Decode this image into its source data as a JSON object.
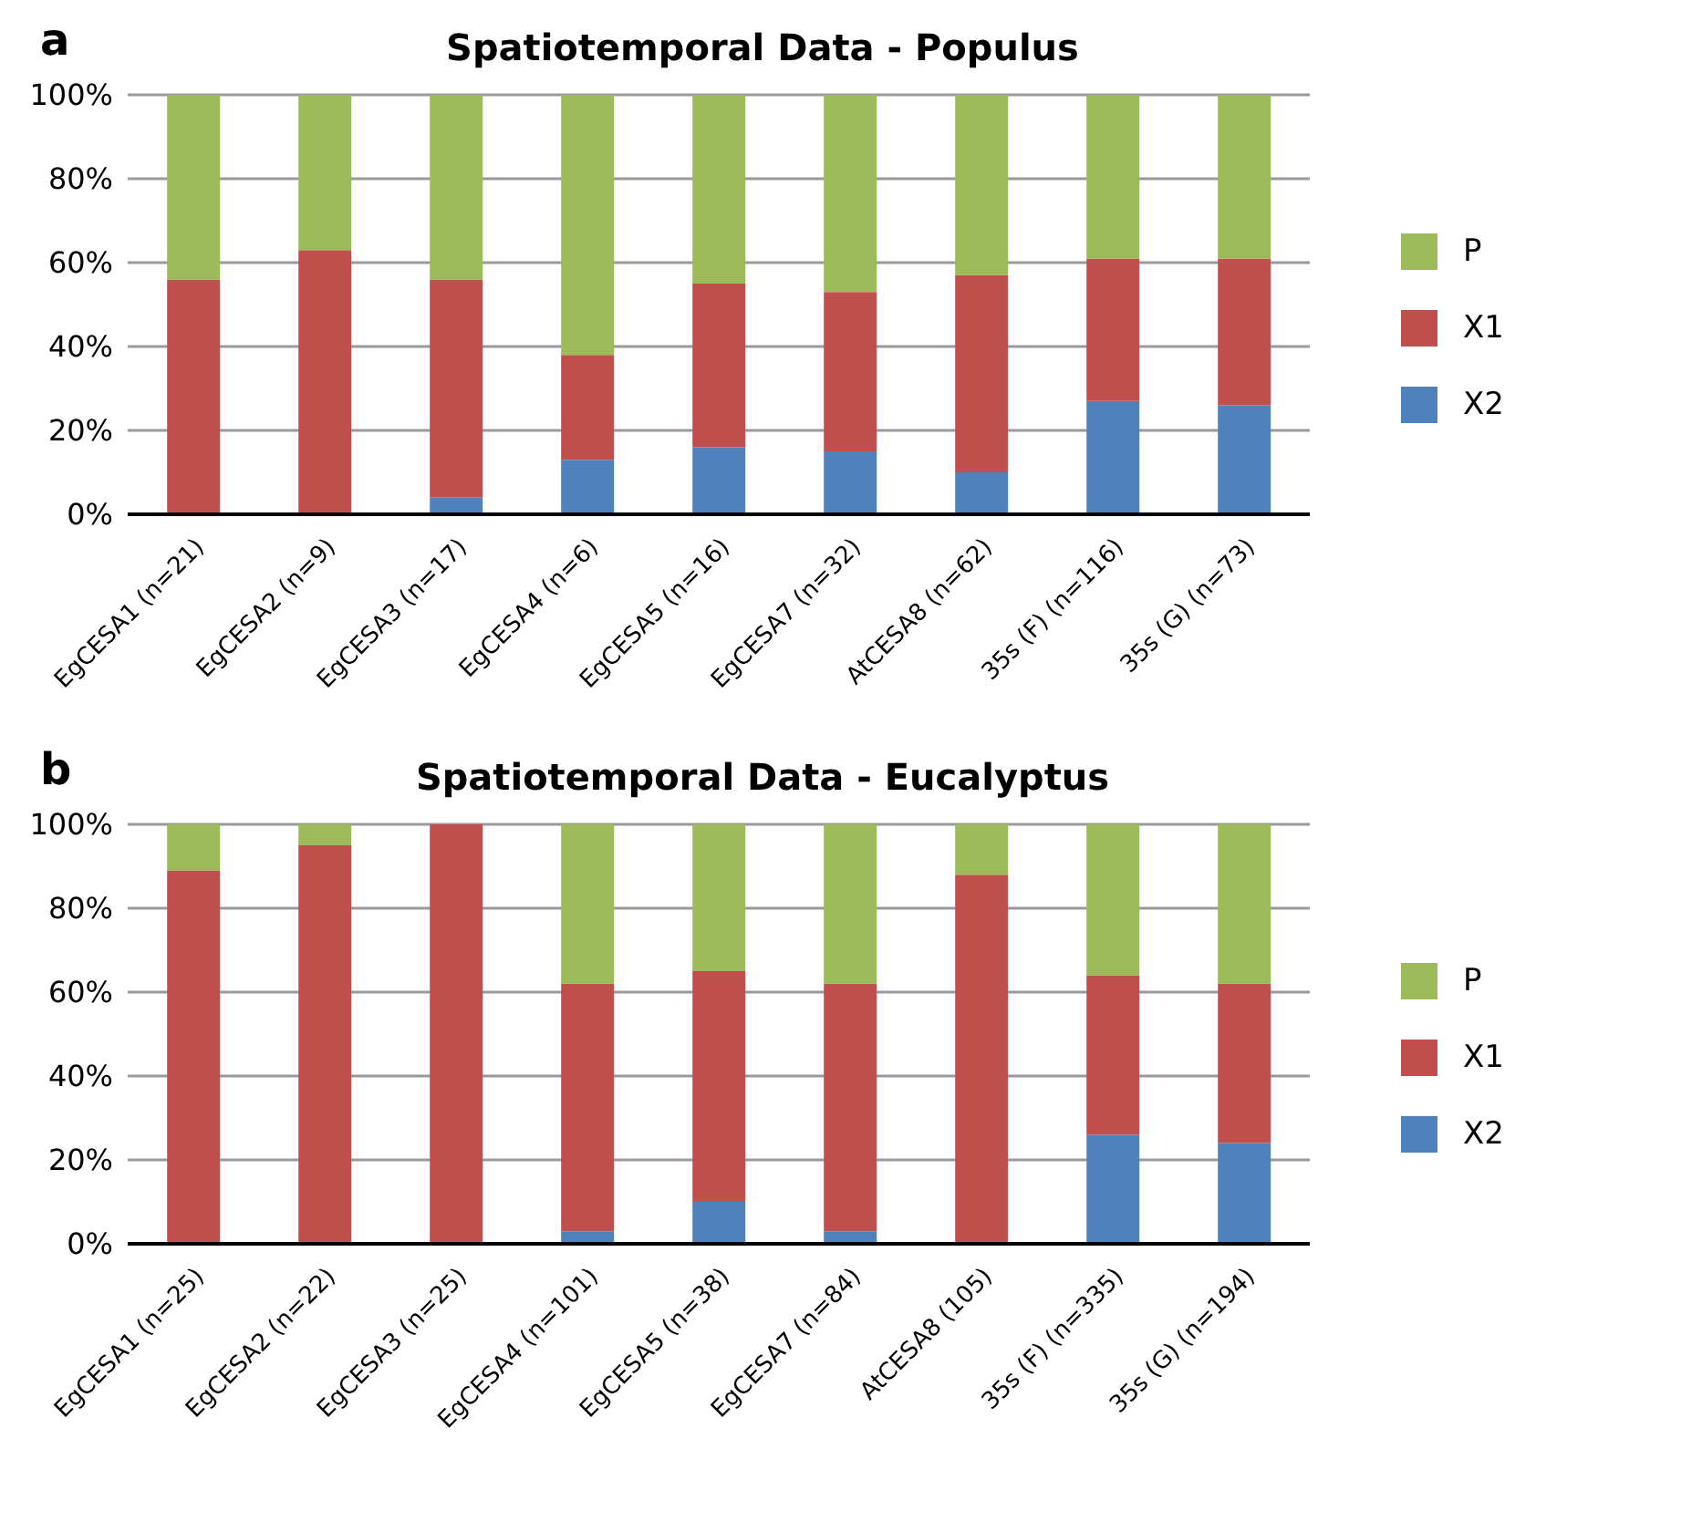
{
  "chart_data": [
    {
      "type": "bar",
      "title": "Spatiotemporal Data - Populus",
      "annotations": [
        "a"
      ],
      "stacked": true,
      "categories": [
        "EgCESA1 (n=21)",
        "EgCESA2 (n=9)",
        "EgCESA3 (n=17)",
        "EgCESA4 (n=6)",
        "EgCESA5 (n=16)",
        "EgCESA7 (n=32)",
        "AtCESA8 (n=62)",
        "35s (F) (n=116)",
        "35s (G) (n=73)"
      ],
      "series": [
        {
          "name": "X2",
          "color": "#4f81bd",
          "values": [
            0,
            0,
            4,
            13,
            16,
            15,
            10,
            27,
            26
          ]
        },
        {
          "name": "X1",
          "color": "#c0504d",
          "values": [
            56,
            63,
            52,
            25,
            39,
            38,
            47,
            34,
            35
          ]
        },
        {
          "name": "P",
          "color": "#9bbb59",
          "values": [
            44,
            37,
            44,
            62,
            45,
            47,
            43,
            39,
            39
          ]
        }
      ],
      "ylim": [
        0,
        100
      ],
      "yticks": [
        {
          "value": 0,
          "label": "0%"
        },
        {
          "value": 20,
          "label": "20%"
        },
        {
          "value": 40,
          "label": "40%"
        },
        {
          "value": 60,
          "label": "60%"
        },
        {
          "value": 80,
          "label": "80%"
        },
        {
          "value": 100,
          "label": "100%"
        }
      ],
      "grid": "y",
      "legend": "right"
    },
    {
      "type": "bar",
      "title": "Spatiotemporal Data - Eucalyptus",
      "annotations": [
        "b"
      ],
      "stacked": true,
      "categories": [
        "EgCESA1 (n=25)",
        "EgCESA2 (n=22)",
        "EgCESA3 (n=25)",
        "EgCESA4 (n=101)",
        "EgCESA5 (n=38)",
        "EgCESA7 (n=84)",
        "AtCESA8 (105)",
        "35s (F) (n=335)",
        "35s (G) (n=194)"
      ],
      "series": [
        {
          "name": "X2",
          "color": "#4f81bd",
          "values": [
            0,
            0,
            0,
            3,
            10,
            3,
            0,
            26,
            24
          ]
        },
        {
          "name": "X1",
          "color": "#c0504d",
          "values": [
            89,
            95,
            100,
            59,
            55,
            59,
            88,
            38,
            38
          ]
        },
        {
          "name": "P",
          "color": "#9bbb59",
          "values": [
            11,
            5,
            0,
            38,
            35,
            38,
            12,
            36,
            38
          ]
        }
      ],
      "ylim": [
        0,
        100
      ],
      "yticks": [
        {
          "value": 0,
          "label": "0%"
        },
        {
          "value": 20,
          "label": "20%"
        },
        {
          "value": 40,
          "label": "40%"
        },
        {
          "value": 60,
          "label": "60%"
        },
        {
          "value": 80,
          "label": "80%"
        },
        {
          "value": 100,
          "label": "100%"
        }
      ],
      "grid": "y",
      "legend": "right"
    }
  ]
}
